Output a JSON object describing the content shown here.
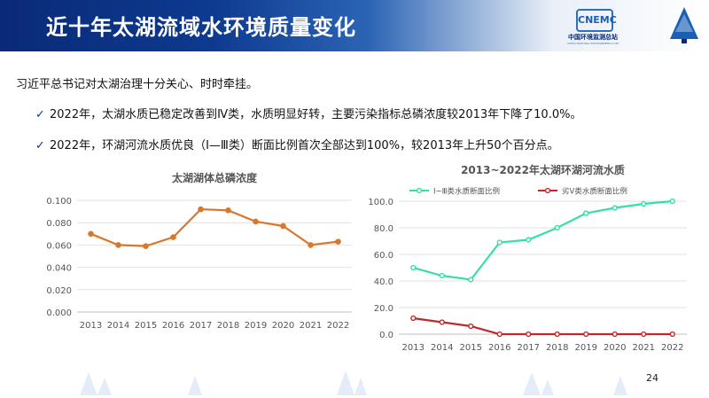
{
  "header": {
    "title": "近十年太湖流域水环境质量变化",
    "logo1_cn": "中国环境监测总站",
    "logo1_en": "CHINA NATIONAL ENVIRONMENTAL MONITORING CENTRE",
    "logo1_mark": "CNEMC"
  },
  "intro": "习近平总书记对太湖治理十分关心、时时牵挂。",
  "bullets": [
    "2022年，太湖水质已稳定改善到Ⅳ类，水质明显好转，主要污染指标总磷浓度较2013年下降了10.0%。",
    "2022年，环湖河流水质优良（Ⅰ—Ⅲ类）断面比例首次全部达到100%，较2013年上升50个百分点。"
  ],
  "page_number": "24",
  "colors": {
    "header_dark": "#0a2a78",
    "line1": "#d9772b",
    "series_good": "#34e0a1",
    "series_bad": "#c0282c"
  },
  "chart_data": [
    {
      "type": "line",
      "title": "太湖湖体总磷浓度",
      "categories": [
        "2013",
        "2014",
        "2015",
        "2016",
        "2017",
        "2018",
        "2019",
        "2020",
        "2021",
        "2022"
      ],
      "values": [
        0.07,
        0.06,
        0.059,
        0.067,
        0.092,
        0.091,
        0.081,
        0.077,
        0.06,
        0.063
      ],
      "ylim": [
        0,
        0.1
      ],
      "yticks": [
        "0.000",
        "0.020",
        "0.040",
        "0.060",
        "0.080",
        "0.100"
      ],
      "grid": true,
      "color": "#d9772b"
    },
    {
      "type": "line",
      "title": "2013~2022年太湖环湖河流水质",
      "categories": [
        "2013",
        "2014",
        "2015",
        "2016",
        "2017",
        "2018",
        "2019",
        "2020",
        "2021",
        "2022"
      ],
      "series": [
        {
          "name": "Ⅰ~Ⅲ类水质断面比例",
          "values": [
            50,
            44,
            41,
            69,
            71,
            80,
            91,
            95,
            98,
            100
          ],
          "color": "#34e0a1"
        },
        {
          "name": "劣Ⅴ类水质断面比例",
          "values": [
            12,
            9,
            6,
            0,
            0,
            0,
            0,
            0,
            0,
            0
          ],
          "color": "#c0282c"
        }
      ],
      "ylim": [
        0,
        100
      ],
      "yticks": [
        "0.0",
        "20.0",
        "40.0",
        "60.0",
        "80.0",
        "100.0"
      ],
      "legend": "top",
      "grid": true
    }
  ]
}
